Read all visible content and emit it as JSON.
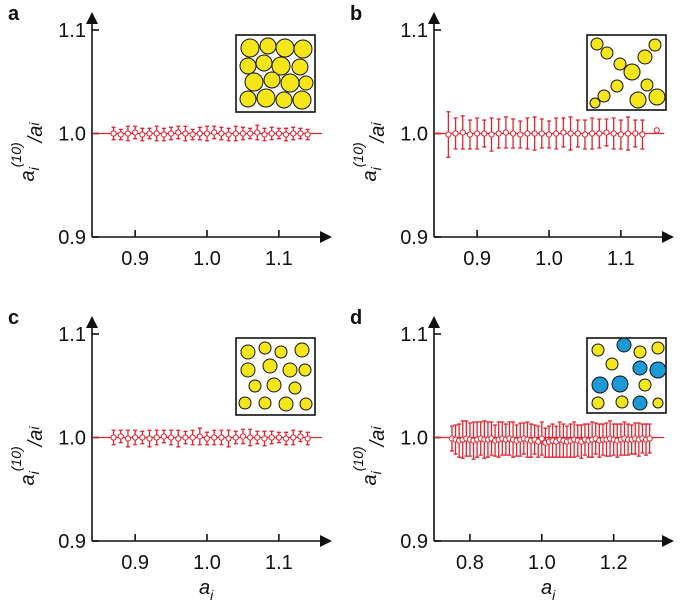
{
  "chart_data": [
    {
      "type": "scatter",
      "label": "a",
      "ylabel": [
        "a",
        "i",
        "(10)",
        "/a",
        "i"
      ],
      "color": "#e2232e",
      "reference_line": 1,
      "xlim": [
        0.84,
        1.16
      ],
      "ylim": [
        0.9,
        1.1
      ],
      "xticks": [
        0.9,
        {
          "value": 1,
          "label": "1.0"
        },
        1.1
      ],
      "yticks": [
        0.9,
        {
          "value": 1,
          "label": "1.0"
        },
        1.1
      ],
      "x": [
        0.87,
        0.88,
        0.89,
        0.9,
        0.91,
        0.92,
        0.93,
        0.94,
        0.95,
        0.96,
        0.97,
        0.98,
        0.99,
        1.0,
        1.01,
        1.02,
        1.03,
        1.04,
        1.05,
        1.06,
        1.07,
        1.08,
        1.09,
        1.1,
        1.11,
        1.12,
        1.13,
        1.14
      ],
      "values": [
        1.0,
        0.999,
        1.0,
        1.001,
        0.999,
        1.0,
        1.0,
        0.999,
        1.0,
        1.001,
        1.0,
        0.999,
        1.0,
        1.0,
        1.001,
        1.0,
        0.999,
        1.0,
        1.0,
        1.0,
        1.001,
        0.999,
        1.0,
        1.0,
        0.999,
        1.0,
        1.0,
        0.999
      ],
      "errors": [
        0.006,
        0.005,
        0.007,
        0.006,
        0.006,
        0.005,
        0.007,
        0.006,
        0.006,
        0.006,
        0.007,
        0.005,
        0.006,
        0.007,
        0.006,
        0.006,
        0.006,
        0.007,
        0.006,
        0.005,
        0.007,
        0.006,
        0.006,
        0.005,
        0.006,
        0.006,
        0.005,
        0.005
      ]
    },
    {
      "type": "scatter",
      "label": "b",
      "ylabel": [
        "a",
        "i",
        "(10)",
        "/a",
        "i"
      ],
      "color": "#e2232e",
      "reference_line": 1,
      "xlim": [
        0.84,
        1.16
      ],
      "ylim": [
        0.9,
        1.1
      ],
      "xticks": [
        0.9,
        {
          "value": 1,
          "label": "1.0"
        },
        1.1
      ],
      "yticks": [
        0.9,
        {
          "value": 1,
          "label": "1.0"
        },
        1.1
      ],
      "x": [
        0.86,
        0.87,
        0.88,
        0.89,
        0.9,
        0.91,
        0.92,
        0.93,
        0.94,
        0.95,
        0.96,
        0.97,
        0.98,
        0.99,
        1.0,
        1.01,
        1.02,
        1.03,
        1.04,
        1.05,
        1.06,
        1.07,
        1.08,
        1.09,
        1.1,
        1.11,
        1.12,
        1.13,
        1.15
      ],
      "values": [
        0.999,
        1.0,
        1.001,
        0.999,
        1.0,
        1.0,
        0.999,
        1.0,
        1.001,
        1.0,
        0.999,
        1.0,
        1.0,
        1.0,
        0.999,
        1.0,
        1.001,
        1.0,
        1.0,
        0.999,
        1.0,
        1.0,
        1.001,
        1.0,
        0.999,
        1.0,
        1.0,
        0.999,
        1.003
      ],
      "errors": [
        0.022,
        0.015,
        0.016,
        0.014,
        0.015,
        0.013,
        0.016,
        0.014,
        0.015,
        0.014,
        0.013,
        0.015,
        0.016,
        0.014,
        0.013,
        0.015,
        0.014,
        0.016,
        0.013,
        0.014,
        0.015,
        0.014,
        0.013,
        0.015,
        0.014,
        0.016,
        0.013,
        0.014,
        0.002
      ]
    },
    {
      "type": "scatter",
      "label": "c",
      "ylabel": [
        "a",
        "i",
        "(10)",
        "/a",
        "i"
      ],
      "xlabel": [
        "a",
        "i"
      ],
      "color": "#e2232e",
      "reference_line": 1,
      "xlim": [
        0.84,
        1.16
      ],
      "ylim": [
        0.9,
        1.1
      ],
      "xticks": [
        0.9,
        {
          "value": 1,
          "label": "1.0"
        },
        1.1
      ],
      "yticks": [
        0.9,
        {
          "value": 1,
          "label": "1.0"
        },
        1.1
      ],
      "x": [
        0.87,
        0.88,
        0.89,
        0.9,
        0.91,
        0.92,
        0.93,
        0.94,
        0.95,
        0.96,
        0.97,
        0.98,
        0.99,
        1.0,
        1.01,
        1.02,
        1.03,
        1.04,
        1.05,
        1.06,
        1.07,
        1.08,
        1.09,
        1.1,
        1.11,
        1.12,
        1.13,
        1.14
      ],
      "values": [
        1.0,
        1.001,
        0.999,
        1.0,
        1.0,
        0.999,
        1.0,
        1.001,
        1.0,
        0.999,
        1.0,
        1.0,
        1.001,
        0.999,
        1.0,
        1.0,
        0.999,
        1.0,
        1.001,
        1.0,
        1.0,
        0.999,
        1.0,
        1.0,
        0.999,
        1.0,
        1.001,
        0.999
      ],
      "errors": [
        0.007,
        0.006,
        0.008,
        0.007,
        0.006,
        0.008,
        0.007,
        0.006,
        0.007,
        0.008,
        0.006,
        0.007,
        0.008,
        0.006,
        0.007,
        0.007,
        0.008,
        0.006,
        0.007,
        0.008,
        0.006,
        0.007,
        0.006,
        0.005,
        0.006,
        0.007,
        0.005,
        0.006
      ]
    },
    {
      "type": "scatter",
      "label": "d",
      "ylabel": [
        "a",
        "i",
        "(10)",
        "/a",
        "i"
      ],
      "xlabel": [
        "a",
        "i"
      ],
      "color": "#e2232e",
      "reference_line": 1,
      "xlim": [
        0.7,
        1.34
      ],
      "ylim": [
        0.9,
        1.1
      ],
      "xticks": [
        0.8,
        {
          "value": 1,
          "label": "1.0"
        },
        1.2
      ],
      "yticks": [
        0.9,
        {
          "value": 1,
          "label": "1.0"
        },
        1.1
      ],
      "x": [
        0.75,
        0.76,
        0.77,
        0.78,
        0.79,
        0.8,
        0.81,
        0.82,
        0.83,
        0.84,
        0.85,
        0.86,
        0.87,
        0.88,
        0.89,
        0.9,
        0.91,
        0.92,
        0.93,
        0.94,
        0.95,
        0.96,
        0.97,
        0.98,
        0.99,
        1.0,
        1.01,
        1.02,
        1.03,
        1.04,
        1.05,
        1.06,
        1.07,
        1.08,
        1.09,
        1.1,
        1.11,
        1.12,
        1.13,
        1.14,
        1.15,
        1.16,
        1.17,
        1.18,
        1.19,
        1.2,
        1.21,
        1.22,
        1.23,
        1.24,
        1.25,
        1.26,
        1.27,
        1.28,
        1.29,
        1.3
      ],
      "values": [
        0.999,
        0.998,
        0.997,
        0.998,
        0.999,
        0.998,
        0.997,
        0.998,
        0.999,
        0.998,
        0.998,
        0.999,
        0.997,
        0.998,
        0.999,
        0.998,
        0.999,
        0.998,
        0.997,
        0.998,
        0.999,
        0.998,
        0.997,
        0.998,
        0.996,
        0.999,
        0.995,
        0.996,
        0.997,
        0.996,
        0.998,
        0.997,
        0.996,
        0.997,
        0.998,
        0.997,
        0.996,
        0.998,
        0.997,
        0.998,
        0.999,
        0.997,
        0.998,
        0.998,
        0.999,
        0.998,
        0.997,
        0.998,
        0.999,
        0.998,
        0.998,
        0.999,
        0.998,
        0.999,
        0.998,
        0.999
      ],
      "errors": [
        0.012,
        0.014,
        0.016,
        0.018,
        0.017,
        0.016,
        0.018,
        0.017,
        0.016,
        0.018,
        0.017,
        0.016,
        0.015,
        0.017,
        0.016,
        0.015,
        0.016,
        0.017,
        0.015,
        0.016,
        0.015,
        0.017,
        0.016,
        0.014,
        0.015,
        0.016,
        0.014,
        0.015,
        0.016,
        0.015,
        0.017,
        0.016,
        0.015,
        0.016,
        0.017,
        0.015,
        0.016,
        0.015,
        0.016,
        0.017,
        0.015,
        0.016,
        0.015,
        0.016,
        0.017,
        0.015,
        0.016,
        0.015,
        0.016,
        0.015,
        0.014,
        0.015,
        0.016,
        0.014,
        0.015,
        0.014
      ]
    }
  ]
}
